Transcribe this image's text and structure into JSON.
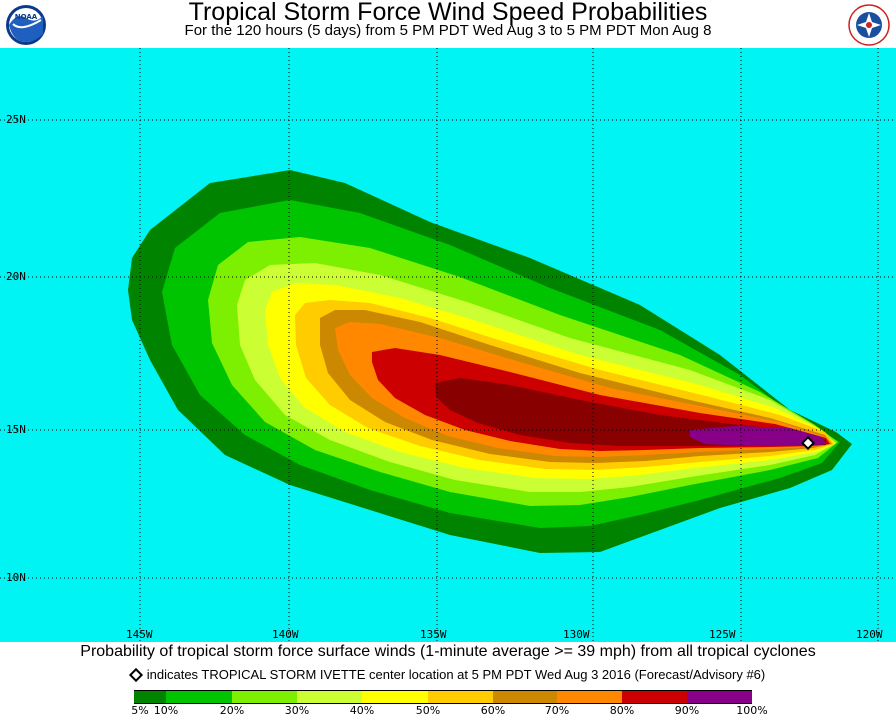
{
  "header": {
    "title": "Tropical Storm Force Wind Speed Probabilities",
    "subtitle": "For the 120 hours (5 days) from 5 PM PDT Wed Aug 3 to 5 PM PDT Mon Aug 8",
    "left_logo": "NOAA",
    "right_logo": "National Weather Service"
  },
  "map": {
    "background_color": "#00f4f4",
    "lat_labels": [
      "25N",
      "20N",
      "15N",
      "10N"
    ],
    "lon_labels": [
      "145W",
      "140W",
      "135W",
      "130W",
      "125W",
      "120W"
    ],
    "storm_marker": "diamond-icon"
  },
  "caption": "Probability of tropical storm force surface winds (1-minute average >= 39 mph) from all tropical cyclones",
  "note": "indicates TROPICAL STORM IVETTE center location at 5 PM PDT Wed Aug 3 2016 (Forecast/Advisory #6)",
  "legend": {
    "labels": [
      "5%",
      "10%",
      "20%",
      "30%",
      "40%",
      "50%",
      "60%",
      "70%",
      "80%",
      "90%",
      "100%"
    ],
    "colors": [
      "#008400",
      "#00c400",
      "#7cf000",
      "#ccff33",
      "#ffff00",
      "#ffcc00",
      "#cc8800",
      "#ff8800",
      "#cc0000",
      "#880000",
      "#880088"
    ]
  }
}
